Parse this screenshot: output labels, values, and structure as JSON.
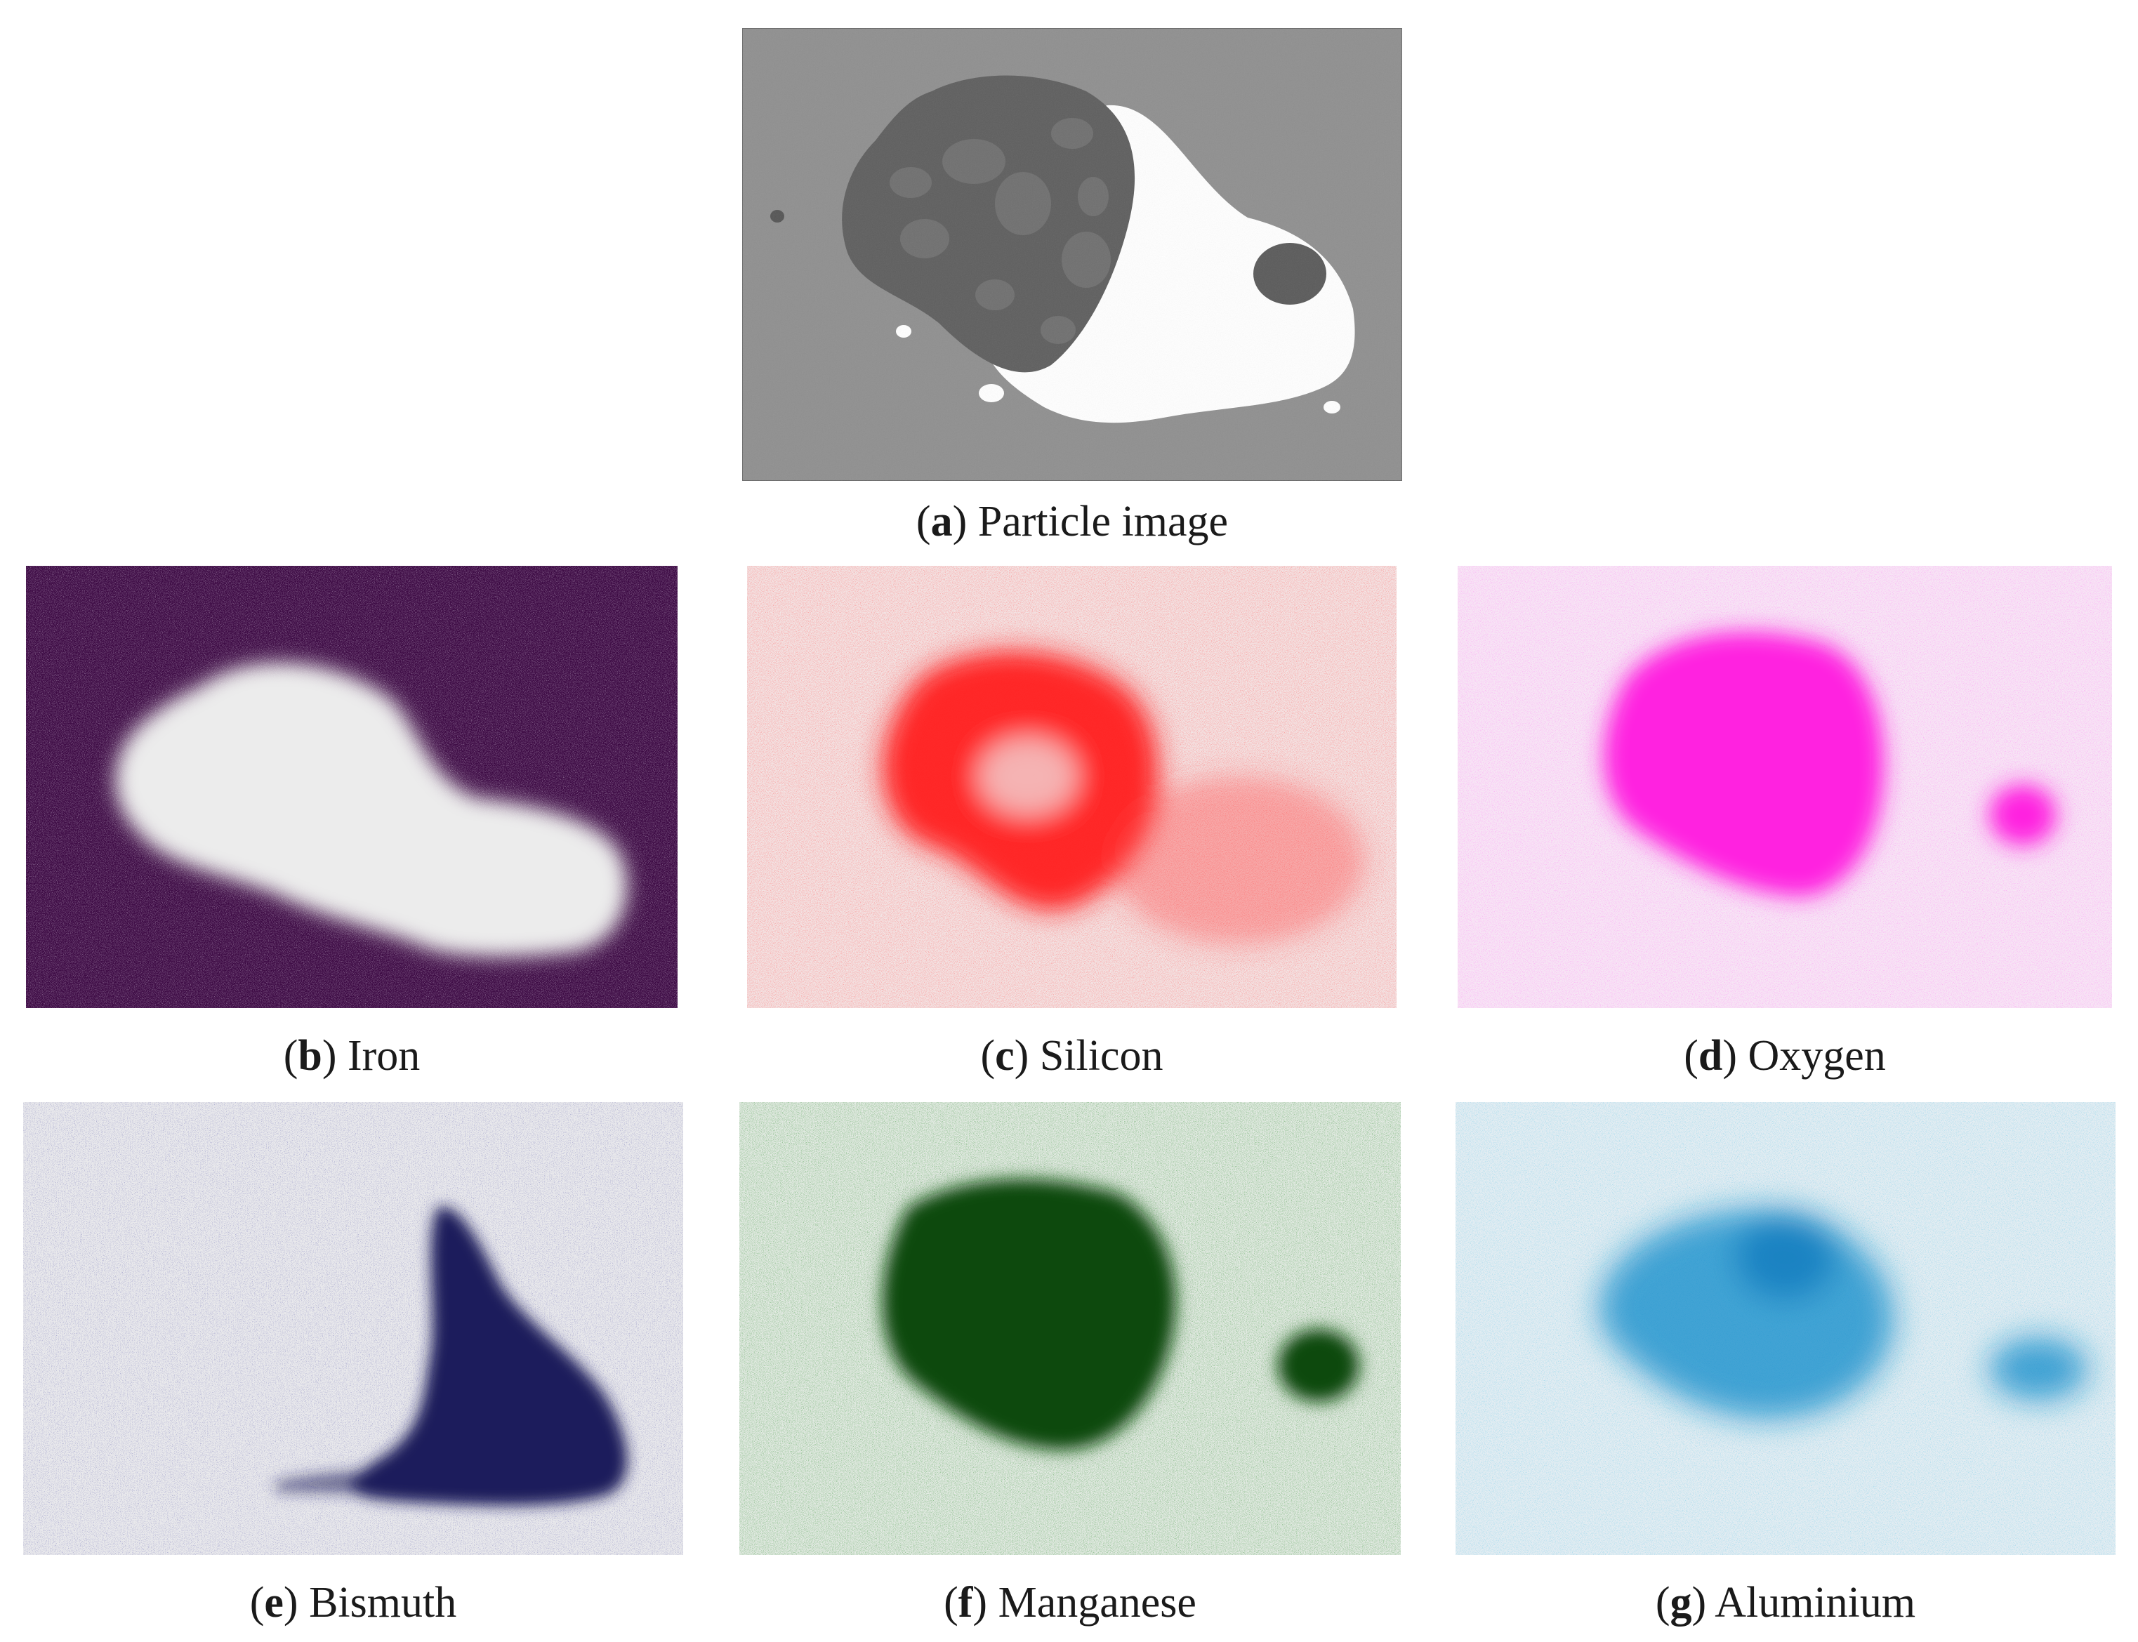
{
  "figure": {
    "panels": [
      {
        "letter": "a",
        "label": "Particle image",
        "icon": "sem-particle-image",
        "colors": {
          "background": "#8f8f8f",
          "dark_phase": "#5f5f5f",
          "bright_phase": "#ffffff"
        }
      },
      {
        "letter": "b",
        "label": "Iron",
        "icon": "element-map-iron",
        "colors": {
          "background": "#3d0a44",
          "signal": "#ececec"
        }
      },
      {
        "letter": "c",
        "label": "Silicon",
        "icon": "element-map-silicon",
        "colors": {
          "background": "#f3e4e4",
          "signal": "#ff1a1a"
        }
      },
      {
        "letter": "d",
        "label": "Oxygen",
        "icon": "element-map-oxygen",
        "colors": {
          "background": "#f7e6f5",
          "signal": "#ff1fe0"
        }
      },
      {
        "letter": "e",
        "label": "Bismuth",
        "icon": "element-map-bismuth",
        "colors": {
          "background": "#e9e9ec",
          "signal": "#18185a"
        }
      },
      {
        "letter": "f",
        "label": "Manganese",
        "icon": "element-map-manganese",
        "colors": {
          "background": "#e4ebe4",
          "signal": "#0b4a0b"
        }
      },
      {
        "letter": "g",
        "label": "Aluminium",
        "icon": "element-map-aluminium",
        "colors": {
          "background": "#e4edf2",
          "signal": "#1890cc"
        }
      }
    ]
  }
}
